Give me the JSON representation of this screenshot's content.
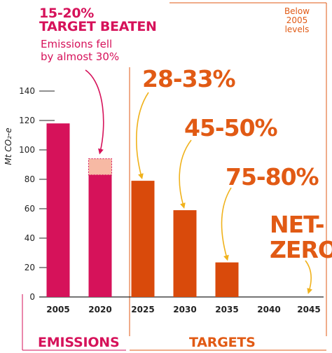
{
  "chart_data": {
    "type": "bar",
    "ylabel": "Mt CO₂-e",
    "ylim": [
      0,
      140
    ],
    "yticks": [
      0,
      20,
      40,
      60,
      80,
      100,
      120,
      140
    ],
    "categories": [
      "2005",
      "2020",
      "2025",
      "2030",
      "2035",
      "2040",
      "2045"
    ],
    "series": [
      {
        "kind": "emissions",
        "values": [
          118,
          83,
          null,
          null,
          null,
          null,
          null
        ],
        "color": "#d6125a"
      },
      {
        "kind": "targets",
        "values": [
          null,
          null,
          79,
          59,
          23.5,
          null,
          null
        ],
        "color": "#d94a0b"
      }
    ],
    "target_band_2020": [
      83,
      94
    ],
    "band_color": "#f7b9a4",
    "arrow_color": "#f0b21c",
    "annotations": {
      "target_beaten_pct": "15-20%",
      "target_beaten": "TARGET BEATEN",
      "emissions_fell": "Emissions fell",
      "by_almost": "by almost 30%",
      "t2025": "28-33%",
      "t2030": "45-50%",
      "t2035": "75-80%",
      "net": "NET-",
      "zero": "ZERO",
      "below_1": "Below",
      "below_2": "2005",
      "below_3": "levels"
    },
    "sections": {
      "emissions": "EMISSIONS",
      "targets": "TARGETS"
    }
  }
}
